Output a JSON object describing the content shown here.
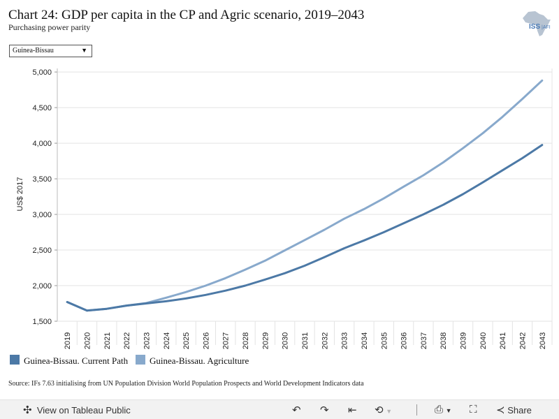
{
  "header": {
    "title": "Chart 24: GDP per capita in the CP and Agric scenario, 2019–2043",
    "subtitle": "Purchasing power parity",
    "logo_text": "ISS|AFRICA"
  },
  "filter": {
    "selected": "Guinea-Bissau"
  },
  "chart_data": {
    "type": "line",
    "ylabel": "US$ 2017",
    "ylim": [
      1500,
      5050
    ],
    "yticks": [
      "1,500",
      "2,000",
      "2,500",
      "3,000",
      "3,500",
      "4,000",
      "4,500",
      "5,000"
    ],
    "ytick_values": [
      1500,
      2000,
      2500,
      3000,
      3500,
      4000,
      4500,
      5000
    ],
    "x": [
      "2019",
      "2020",
      "2021",
      "2022",
      "2023",
      "2024",
      "2025",
      "2026",
      "2027",
      "2028",
      "2029",
      "2030",
      "2031",
      "2032",
      "2033",
      "2034",
      "2035",
      "2036",
      "2037",
      "2038",
      "2039",
      "2040",
      "2041",
      "2042",
      "2043"
    ],
    "grid": "horizontal",
    "legend_position": "bottom",
    "series": [
      {
        "name": "Guinea-Bissau. Current Path",
        "color": "#4c79a6",
        "values": [
          1770,
          1650,
          1675,
          1720,
          1750,
          1780,
          1820,
          1870,
          1930,
          2000,
          2085,
          2175,
          2280,
          2400,
          2525,
          2635,
          2750,
          2875,
          3000,
          3135,
          3285,
          3450,
          3620,
          3790,
          3975
        ]
      },
      {
        "name": "Guinea-Bissau. Agriculture",
        "color": "#88a9cc",
        "values": [
          1770,
          1650,
          1675,
          1720,
          1755,
          1830,
          1910,
          2000,
          2105,
          2225,
          2350,
          2495,
          2640,
          2785,
          2940,
          3075,
          3225,
          3390,
          3550,
          3730,
          3930,
          4140,
          4370,
          4620,
          4880
        ]
      }
    ]
  },
  "source": "Source: IFs 7.63 initialising from UN Population Division World Population Prospects and World Development Indicators data",
  "toolbar": {
    "view_label": "View on Tableau Public",
    "share_label": "Share"
  }
}
